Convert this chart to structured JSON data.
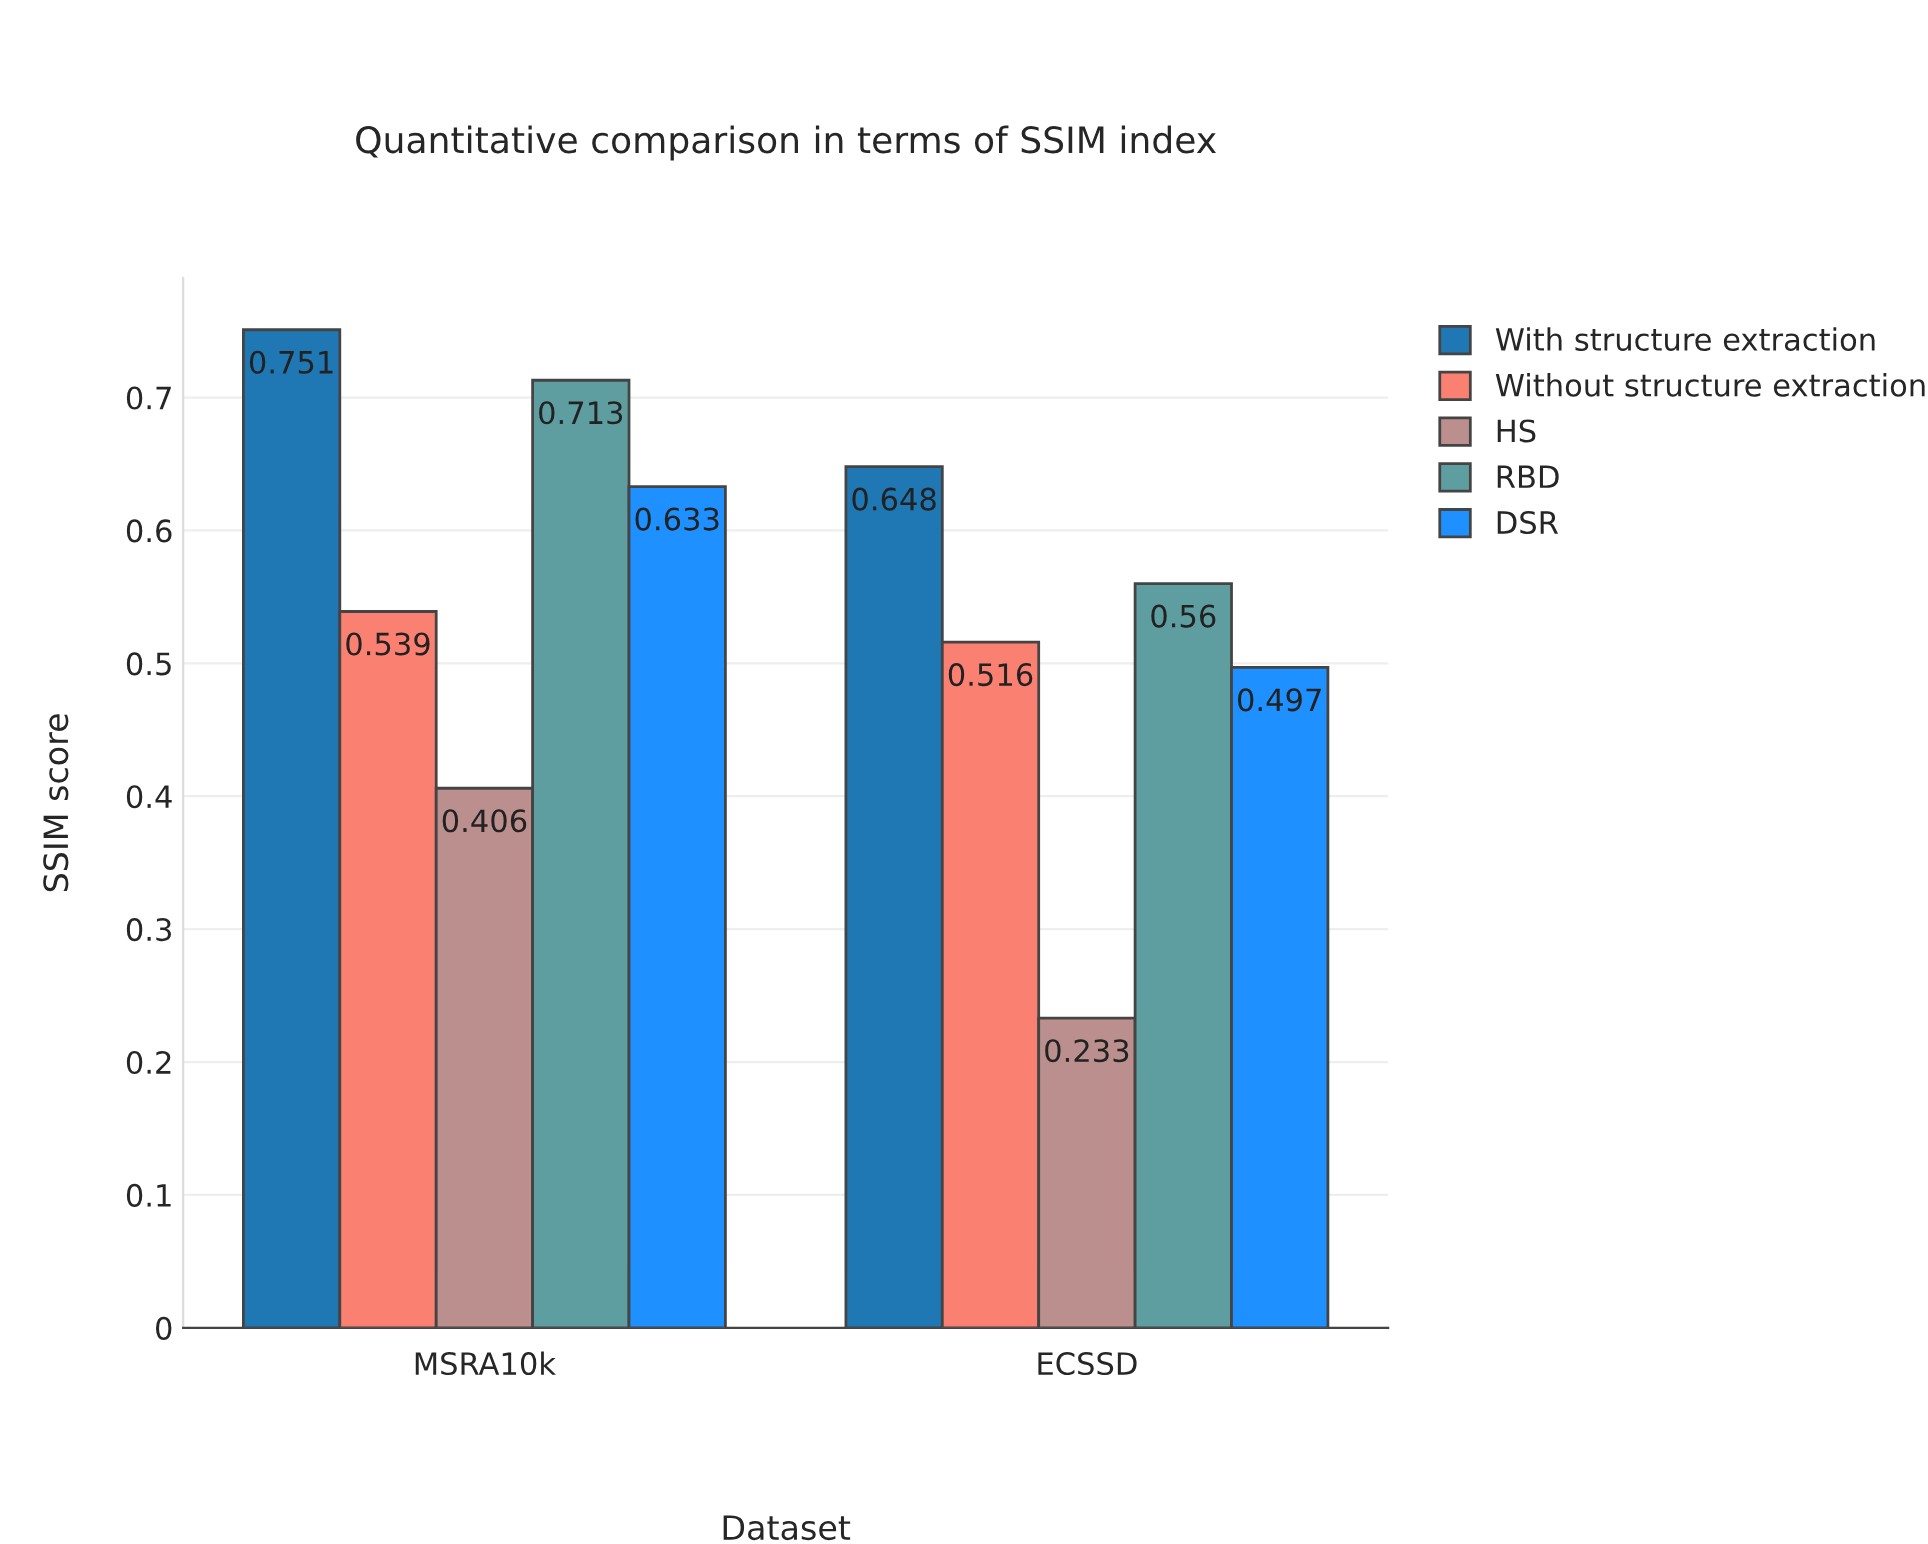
{
  "chart_data": {
    "type": "bar",
    "title": "Quantitative comparison in terms of SSIM index",
    "xlabel": "Dataset",
    "ylabel": "SSIM score",
    "categories": [
      "MSRA10k",
      "ECSSD"
    ],
    "series": [
      {
        "name": "With structure extraction",
        "color": "#1f77b4",
        "values": [
          0.751,
          0.648
        ]
      },
      {
        "name": "Without structure extraction",
        "color": "#fa8072",
        "values": [
          0.539,
          0.516
        ]
      },
      {
        "name": "HS",
        "color": "#bc8f8f",
        "values": [
          0.406,
          0.233
        ]
      },
      {
        "name": "RBD",
        "color": "#5f9ea0",
        "values": [
          0.713,
          0.56
        ]
      },
      {
        "name": "DSR",
        "color": "#1e90ff",
        "values": [
          0.633,
          0.497
        ]
      }
    ],
    "ylim": [
      0,
      0.79
    ],
    "yticks": [
      0,
      0.1,
      0.2,
      0.3,
      0.4,
      0.5,
      0.6,
      0.7
    ],
    "grid": "y",
    "legend": "top right",
    "data_labels": true
  }
}
